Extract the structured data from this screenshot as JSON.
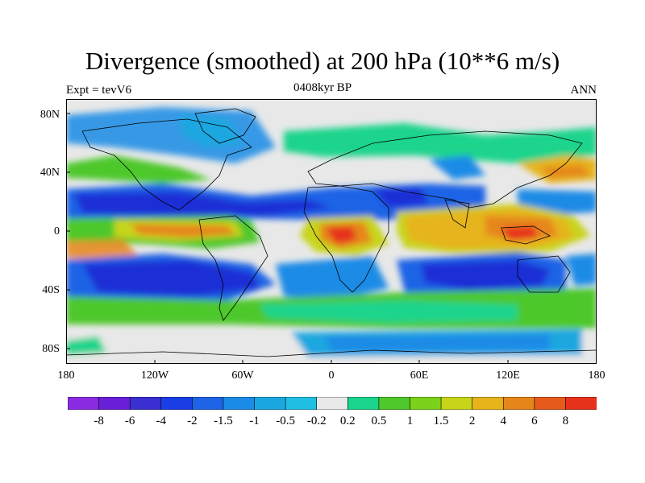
{
  "title": "Divergence (smoothed) at 200 hPa (10**6 m/s)",
  "left_label": "Expt = tevV6",
  "center_label": "0408kyr BP",
  "right_label": "ANN",
  "lat_ticks": [
    "80N",
    "40N",
    "0",
    "40S",
    "80S"
  ],
  "lon_ticks": [
    "180",
    "120W",
    "60W",
    "0",
    "60E",
    "120E",
    "180"
  ],
  "colorbar": {
    "labels": [
      "-8",
      "-6",
      "-4",
      "-2",
      "-1.5",
      "-1",
      "-0.5",
      "-0.2",
      "0.2",
      "0.5",
      "1",
      "1.5",
      "2",
      "4",
      "6",
      "8"
    ],
    "colors": [
      "#8a2be2",
      "#6a1fd8",
      "#3a2fd0",
      "#1a3ee6",
      "#1e63e6",
      "#1a8be6",
      "#1aa7e0",
      "#1fbfe3",
      "#e8e8e8",
      "#1ad48c",
      "#4ec82a",
      "#7cd21a",
      "#c8d41a",
      "#e6b41a",
      "#e6861a",
      "#e65a1a",
      "#e6321a"
    ]
  },
  "field_colors": {
    "strong_negative": "#1a2fd6",
    "negative": "#1a63e6",
    "weak_negative": "#1aa7e0",
    "neutral": "#e8e8e8",
    "weak_positive": "#1ad48c",
    "positive": "#4ec82a",
    "strong_positive": "#e6861a",
    "very_strong_positive": "#e6321a"
  }
}
